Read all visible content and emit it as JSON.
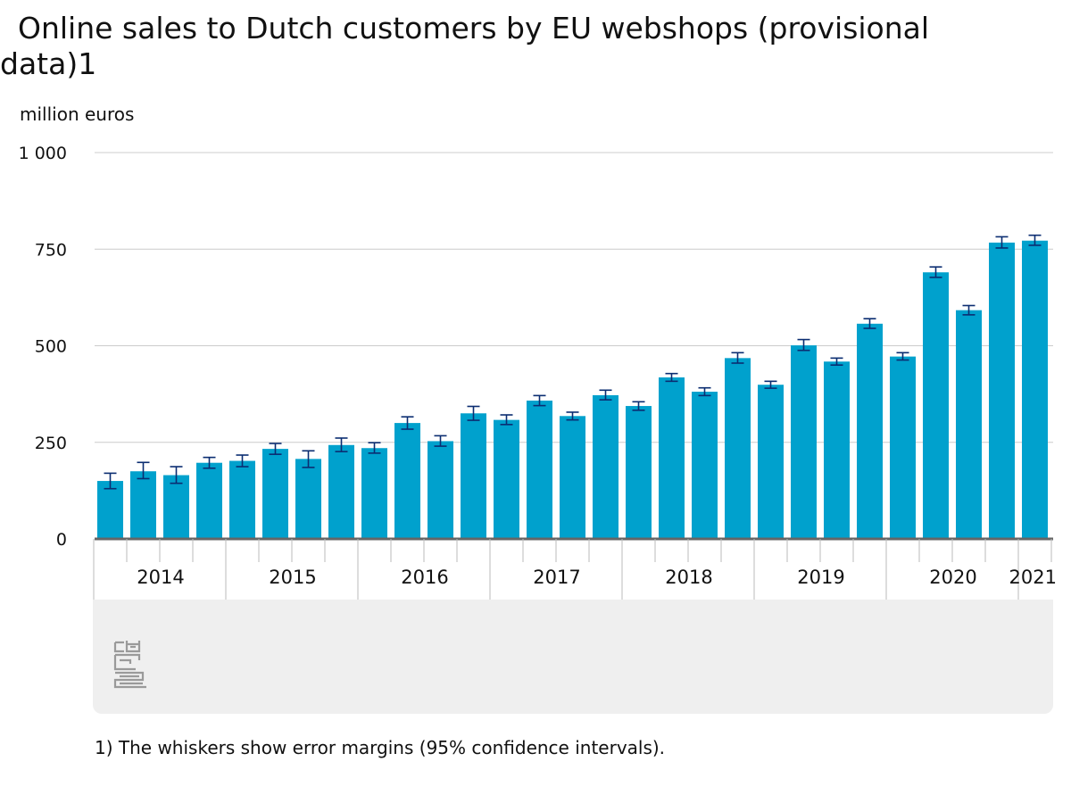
{
  "page": {
    "title": "Online sales to Dutch customers by EU webshops (provisional data)1",
    "unit_label": "million euros",
    "footnote": "1) The whiskers show error margins (95% confidence intervals)."
  },
  "colors": {
    "bar": "#00a1cd",
    "whisker": "#0b2d71",
    "grid": "#cccccc",
    "axis": "#666666",
    "panel": "#efefef"
  },
  "icons": {
    "logo": "cbs-logo-icon"
  },
  "chart_data": {
    "type": "bar",
    "title": "Online sales to Dutch customers by EU webshops (provisional data)1",
    "ylabel": "million euros",
    "xlabel": "",
    "ylim": [
      0,
      1000
    ],
    "yticks": [
      0,
      250,
      500,
      750,
      1000
    ],
    "ytick_labels": [
      "0",
      "250",
      "500",
      "750",
      "1 000"
    ],
    "grid": true,
    "year_labels": [
      "2014",
      "2015",
      "2016",
      "2017",
      "2018",
      "2019",
      "2020",
      "2021"
    ],
    "categories": [
      "2014 Q1",
      "2014 Q2",
      "2014 Q3",
      "2014 Q4",
      "2015 Q1",
      "2015 Q2",
      "2015 Q3",
      "2015 Q4",
      "2016 Q1",
      "2016 Q2",
      "2016 Q3",
      "2016 Q4",
      "2017 Q1",
      "2017 Q2",
      "2017 Q3",
      "2017 Q4",
      "2018 Q1",
      "2018 Q2",
      "2018 Q3",
      "2018 Q4",
      "2019 Q1",
      "2019 Q2",
      "2019 Q3",
      "2019 Q4",
      "2020 Q1",
      "2020 Q2",
      "2020 Q3",
      "2020 Q4",
      "2021 Q1"
    ],
    "values": [
      150,
      175,
      165,
      197,
      202,
      233,
      207,
      243,
      235,
      300,
      253,
      325,
      308,
      358,
      318,
      372,
      344,
      418,
      381,
      468,
      399,
      501,
      459,
      557,
      472,
      690,
      592,
      767,
      772
    ],
    "error_low": [
      130,
      156,
      144,
      183,
      187,
      219,
      185,
      226,
      222,
      284,
      240,
      307,
      296,
      345,
      308,
      360,
      333,
      408,
      371,
      455,
      390,
      488,
      450,
      545,
      463,
      677,
      580,
      753,
      760
    ],
    "error_high": [
      170,
      198,
      187,
      211,
      217,
      247,
      228,
      261,
      249,
      316,
      267,
      343,
      321,
      371,
      328,
      385,
      355,
      428,
      391,
      482,
      408,
      516,
      468,
      570,
      482,
      704,
      604,
      782,
      786
    ]
  }
}
